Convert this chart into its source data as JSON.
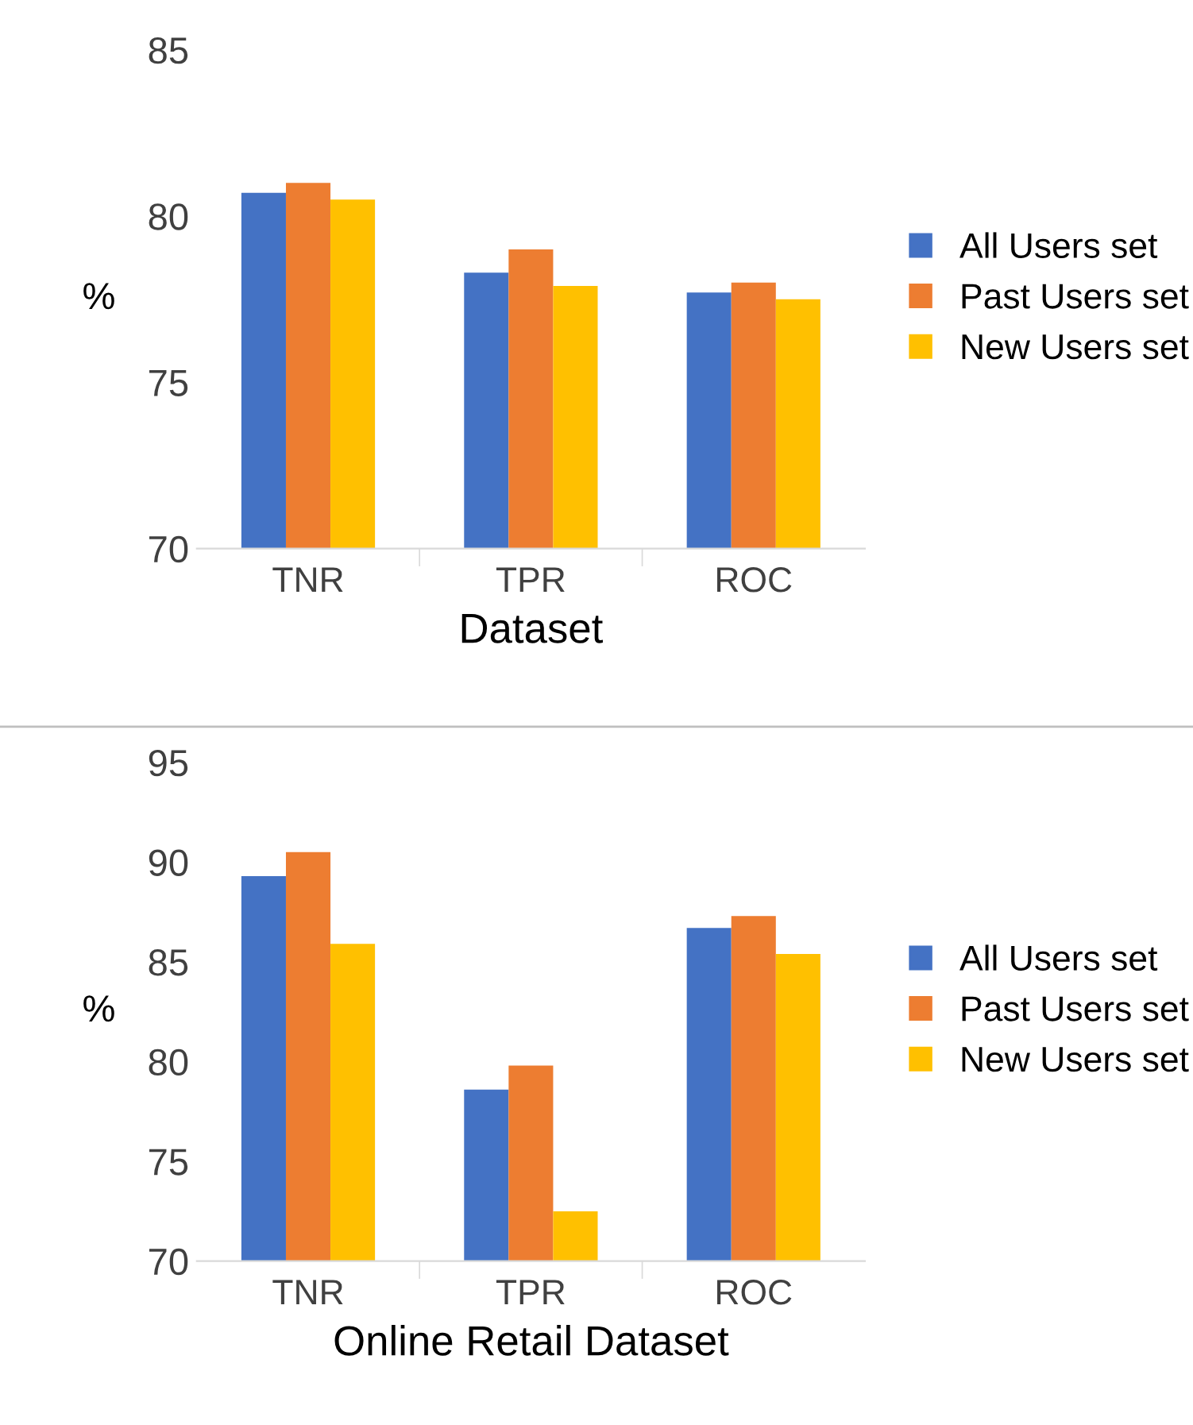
{
  "chart_data": [
    {
      "type": "bar",
      "categories": [
        "TNR",
        "TPR",
        "ROC"
      ],
      "xlabel": "Dataset",
      "ylabel": "%",
      "ylim": [
        70,
        85
      ],
      "yticks": [
        70,
        75,
        80,
        85
      ],
      "grid": false,
      "legend": "right",
      "series": [
        {
          "name": "All Users set",
          "color": "#4472c4",
          "values": [
            80.7,
            78.3,
            77.7
          ]
        },
        {
          "name": "Past Users set",
          "color": "#ed7d31",
          "values": [
            81.0,
            79.0,
            78.0
          ]
        },
        {
          "name": "New Users set",
          "color": "#ffc000",
          "values": [
            80.5,
            77.9,
            77.5
          ]
        }
      ]
    },
    {
      "type": "bar",
      "categories": [
        "TNR",
        "TPR",
        "ROC"
      ],
      "xlabel": "Online Retail Dataset",
      "ylabel": "%",
      "ylim": [
        70,
        95
      ],
      "yticks": [
        70,
        75,
        80,
        85,
        90,
        95
      ],
      "grid": false,
      "legend": "right",
      "series": [
        {
          "name": "All Users set",
          "color": "#4472c4",
          "values": [
            89.3,
            78.6,
            86.7
          ]
        },
        {
          "name": "Past Users set",
          "color": "#ed7d31",
          "values": [
            90.5,
            79.8,
            87.3
          ]
        },
        {
          "name": "New Users set",
          "color": "#ffc000",
          "values": [
            85.9,
            72.5,
            85.4
          ]
        }
      ]
    }
  ]
}
